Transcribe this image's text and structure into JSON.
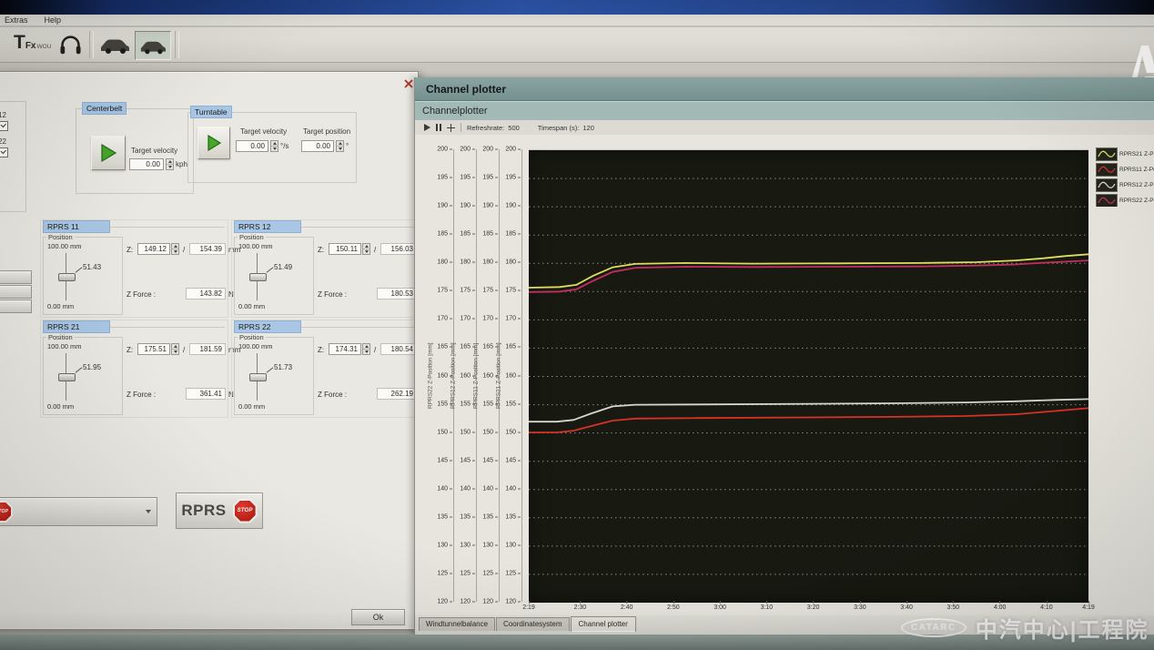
{
  "menubar": {
    "items": [
      "Extras",
      "Help"
    ]
  },
  "toolbar": {
    "logo_main": "T",
    "logo_fx": "Fx",
    "logo_small": "WOU"
  },
  "icons": {
    "headphones": "headphones-arc-with-earcups",
    "car": "car-silhouette",
    "play": "green-triangle",
    "pause": "double-bars",
    "autoscale": "crosshair",
    "stop": "red-octagon-STOP",
    "close": "red-x",
    "dropdown": "caret-down",
    "spinner": "up-down-arrows",
    "legend_wave": "mini-waveform"
  },
  "control_window": {
    "checkboxes": [
      {
        "label": "12"
      },
      {
        "label": "22"
      }
    ],
    "centerbelt": {
      "title": "Centerbelt",
      "velocity_label": "Target velocity",
      "velocity_value": "0.00",
      "velocity_unit": "kph"
    },
    "turntable": {
      "title": "Turntable",
      "velocity_label": "Target velocity",
      "velocity_value": "0.00",
      "velocity_unit": "°/s",
      "position_label": "Target position",
      "position_value": "0.00",
      "position_unit": "°"
    },
    "rprs_panels": [
      {
        "title": "RPRS 11",
        "position_label": "Position",
        "max": "100.00 mm",
        "min": "0.00 mm",
        "slider": "51.43",
        "z_label": "Z:",
        "z_value": "149.12",
        "divider": "/",
        "z_target": "154.39",
        "z_unit": "mm",
        "force_label": "Z Force :",
        "force_value": "143.82",
        "force_unit": "N"
      },
      {
        "title": "RPRS 12",
        "position_label": "Position",
        "max": "100.00 mm",
        "min": "0.00 mm",
        "slider": "51.49",
        "z_label": "Z:",
        "z_value": "150.11",
        "divider": "/",
        "z_target": "156.03",
        "z_unit": "mm",
        "force_label": "Z Force :",
        "force_value": "180.53",
        "force_unit": "N"
      },
      {
        "title": "RPRS 21",
        "position_label": "Position",
        "max": "100.00 mm",
        "min": "0.00 mm",
        "slider": "51.95",
        "z_label": "Z:",
        "z_value": "175.51",
        "divider": "/",
        "z_target": "181.59",
        "z_unit": "mm",
        "force_label": "Z Force :",
        "force_value": "361.41",
        "force_unit": "N"
      },
      {
        "title": "RPRS 22",
        "position_label": "Position",
        "max": "100.00 mm",
        "min": "0.00 mm",
        "slider": "51.73",
        "z_label": "Z:",
        "z_value": "174.31",
        "divider": "/",
        "z_target": "180.54",
        "z_unit": "mm",
        "force_label": "Z Force :",
        "force_value": "262.19",
        "force_unit": "N"
      }
    ],
    "rprs_stop": {
      "label": "RPRS",
      "stop_text": "STOP"
    },
    "ok_label": "Ok"
  },
  "plotter": {
    "window_title": "Channel plotter",
    "header": "Channelplotter",
    "toolbar": {
      "refresh_label": "Refreshrate:",
      "refresh_value": "500",
      "timespan_label": "Timespan (s):",
      "timespan_value": "120"
    },
    "tabs": [
      {
        "label": "Windtunnelbalance"
      },
      {
        "label": "Coordinatesystem"
      },
      {
        "label": "Channel plotter"
      }
    ],
    "active_tab": "Channel plotter"
  },
  "watermark": {
    "logo": "CATARC",
    "text": "中汽中心|工程院"
  },
  "chart_data": {
    "type": "line",
    "title": "Channelplotter",
    "ylim": [
      120,
      200
    ],
    "ytick_step": 5,
    "grid": true,
    "legend_position": "right",
    "background": "#181a12",
    "axes_labels": [
      "RPRS22 Z-Position [mm]",
      "RPRS12 Z-Position [mm]",
      "RPRS11 Z-Position [mm]",
      "RPRS21 Z-Position [mm]"
    ],
    "xticks": [
      "2:19",
      "2:30",
      "2:40",
      "2:50",
      "3:00",
      "3:10",
      "3:20",
      "3:30",
      "3:40",
      "3:50",
      "4:00",
      "4:10",
      "4:19"
    ],
    "series": [
      {
        "name": "RPRS21 Z-Pos",
        "color": "#dede5c",
        "points": [
          [
            0,
            175.7
          ],
          [
            0.055,
            175.8
          ],
          [
            0.085,
            176.2
          ],
          [
            0.115,
            177.8
          ],
          [
            0.15,
            179.3
          ],
          [
            0.19,
            179.9
          ],
          [
            0.28,
            180.05
          ],
          [
            0.4,
            179.95
          ],
          [
            0.55,
            180.0
          ],
          [
            0.7,
            180.05
          ],
          [
            0.8,
            180.2
          ],
          [
            0.87,
            180.5
          ],
          [
            0.92,
            180.9
          ],
          [
            0.96,
            181.3
          ],
          [
            1,
            181.6
          ]
        ]
      },
      {
        "name": "RPRS22 Z-Pos",
        "color": "#c22e62",
        "points": [
          [
            0,
            174.9
          ],
          [
            0.055,
            175.0
          ],
          [
            0.085,
            175.4
          ],
          [
            0.115,
            176.9
          ],
          [
            0.15,
            178.5
          ],
          [
            0.19,
            179.2
          ],
          [
            0.28,
            179.4
          ],
          [
            0.4,
            179.35
          ],
          [
            0.55,
            179.4
          ],
          [
            0.7,
            179.45
          ],
          [
            0.8,
            179.6
          ],
          [
            0.87,
            179.8
          ],
          [
            0.92,
            180.1
          ],
          [
            0.96,
            180.3
          ],
          [
            1,
            180.5
          ]
        ]
      },
      {
        "name": "RPRS12 Z-Pos",
        "color": "#d6d6d2",
        "points": [
          [
            0,
            152.0
          ],
          [
            0.05,
            152.0
          ],
          [
            0.08,
            152.3
          ],
          [
            0.11,
            153.4
          ],
          [
            0.15,
            154.7
          ],
          [
            0.19,
            155.0
          ],
          [
            0.3,
            155.05
          ],
          [
            0.5,
            155.15
          ],
          [
            0.65,
            155.25
          ],
          [
            0.78,
            155.4
          ],
          [
            0.87,
            155.6
          ],
          [
            0.94,
            155.85
          ],
          [
            1,
            156.0
          ]
        ]
      },
      {
        "name": "RPRS11 Z-Pos",
        "color": "#d63226",
        "points": [
          [
            0,
            150.1
          ],
          [
            0.05,
            150.1
          ],
          [
            0.08,
            150.4
          ],
          [
            0.11,
            151.2
          ],
          [
            0.15,
            152.2
          ],
          [
            0.19,
            152.55
          ],
          [
            0.3,
            152.65
          ],
          [
            0.5,
            152.75
          ],
          [
            0.65,
            152.85
          ],
          [
            0.78,
            153.0
          ],
          [
            0.87,
            153.3
          ],
          [
            0.93,
            153.8
          ],
          [
            1,
            154.4
          ]
        ]
      }
    ],
    "legend": [
      {
        "label": "RPRS21 Z-Pos",
        "series": "RPRS21 Z-Pos"
      },
      {
        "label": "RPRS11 Z-Pos",
        "series": "RPRS11 Z-Pos"
      },
      {
        "label": "RPRS12 Z-Pos",
        "series": "RPRS12 Z-Pos"
      },
      {
        "label": "RPRS22 Z-Pos",
        "series": "RPRS22 Z-Pos"
      }
    ]
  }
}
